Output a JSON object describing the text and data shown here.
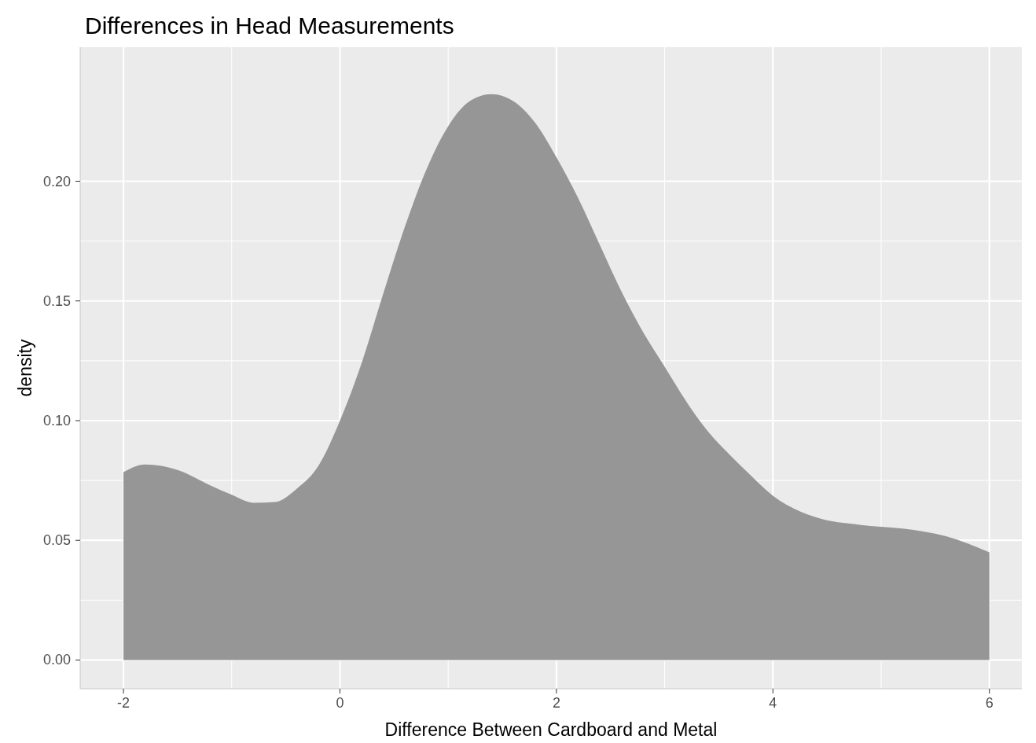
{
  "chart_data": {
    "type": "area",
    "title": "Differences in Head Measurements",
    "xlabel": "Difference Between Cardboard and Metal",
    "ylabel": "density",
    "x": [
      -2,
      -1.8,
      -1.5,
      -1.2,
      -1,
      -0.8,
      -0.6,
      -0.4,
      -0.2,
      0,
      0.2,
      0.4,
      0.6,
      0.8,
      1,
      1.2,
      1.4,
      1.6,
      1.8,
      2,
      2.2,
      2.4,
      2.6,
      2.8,
      3,
      3.2,
      3.4,
      3.6,
      3.8,
      4,
      4.4,
      4.8,
      5.2,
      5.6,
      6
    ],
    "series": [
      {
        "color": "#969696",
        "values": [
          0.0785,
          0.0817,
          0.0794,
          0.073,
          0.069,
          0.0657,
          0.066,
          0.0715,
          0.081,
          0.1,
          0.124,
          0.153,
          0.181,
          0.205,
          0.223,
          0.2335,
          0.2364,
          0.2335,
          0.2246,
          0.21,
          0.193,
          0.1735,
          0.154,
          0.137,
          0.1225,
          0.108,
          0.0955,
          0.0858,
          0.0769,
          0.0686,
          0.0596,
          0.0565,
          0.0549,
          0.0517,
          0.045
        ]
      }
    ],
    "xlim": [
      -2.4,
      6.3
    ],
    "ylim": [
      -0.012,
      0.256
    ],
    "xticks": [
      -2,
      0,
      2,
      4,
      6
    ],
    "yticks": [
      {
        "value": 0,
        "label": "0.00"
      },
      {
        "value": 0.05,
        "label": "0.05"
      },
      {
        "value": 0.1,
        "label": "0.10"
      },
      {
        "value": 0.15,
        "label": "0.15"
      },
      {
        "value": 0.2,
        "label": "0.20"
      }
    ],
    "grid": true
  }
}
